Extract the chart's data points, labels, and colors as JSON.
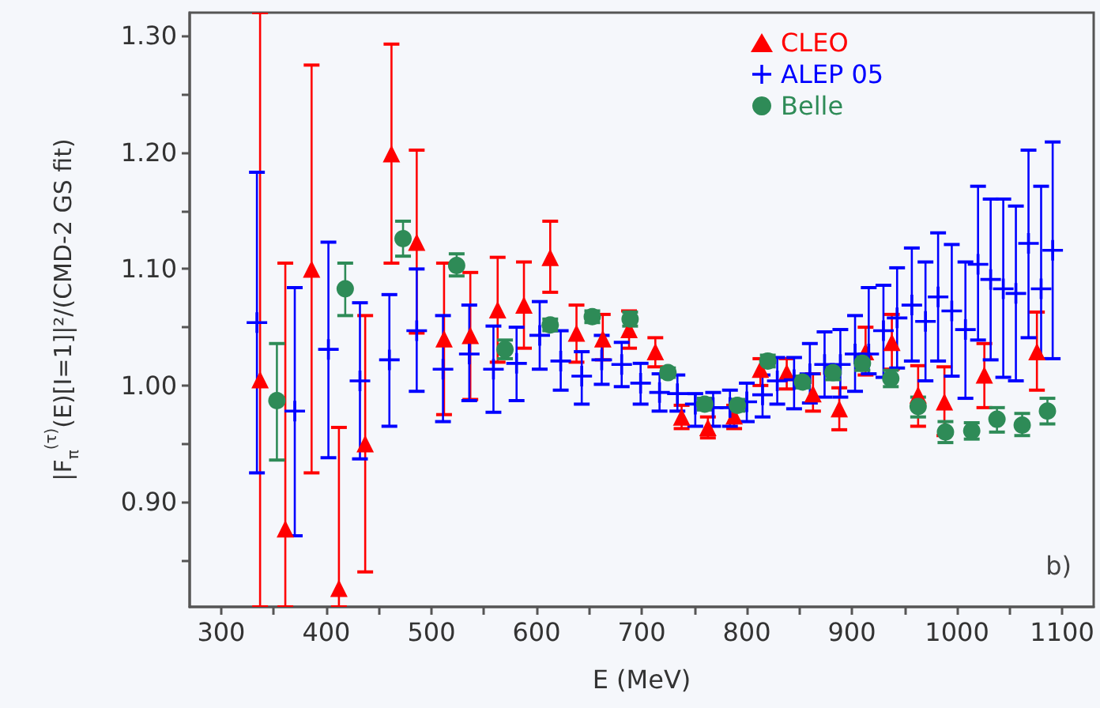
{
  "chart_data": {
    "type": "scatter",
    "xlabel": "E (MeV)",
    "ylabel": "|F$_{π}$$^{(τ)}$(E)[I=1]|²/(CMD-2 GS fit)",
    "annotations": [
      "b)"
    ],
    "xlim": [
      270,
      1130
    ],
    "ylim": [
      0.81,
      1.32
    ],
    "xticks": [
      300,
      {
        "value": 350,
        "label": null
      },
      400,
      {
        "value": 450,
        "label": null
      },
      500,
      {
        "value": 550,
        "label": null
      },
      600,
      {
        "value": 650,
        "label": null
      },
      700,
      {
        "value": 750,
        "label": null
      },
      800,
      {
        "value": 850,
        "label": null
      },
      900,
      {
        "value": 950,
        "label": null
      },
      1000,
      {
        "value": 1050,
        "label": null
      },
      1100
    ],
    "yticks": [
      {
        "value": 0.85,
        "label": null
      },
      {
        "value": 0.9,
        "label": "0.90"
      },
      {
        "value": 0.95,
        "label": null
      },
      {
        "value": 1.0,
        "label": "1.00"
      },
      {
        "value": 1.05,
        "label": null
      },
      {
        "value": 1.1,
        "label": "1.10"
      },
      {
        "value": 1.15,
        "label": null
      },
      {
        "value": 1.2,
        "label": "1.20"
      },
      {
        "value": 1.25,
        "label": null
      },
      {
        "value": 1.3,
        "label": "1.30"
      }
    ],
    "legend": "top",
    "grid": false,
    "series": [
      {
        "name": "CLEO",
        "color": "#ff0000",
        "marker": "triangle",
        "x": [
          337,
          361,
          386,
          412,
          437,
          462,
          486,
          512,
          537,
          563,
          588,
          613,
          638,
          663,
          688,
          713,
          738,
          763,
          788,
          813,
          838,
          863,
          888,
          913,
          938,
          963,
          988,
          1026,
          1076
        ],
        "values": [
          1.005,
          0.877,
          1.1,
          0.826,
          0.95,
          1.199,
          1.123,
          1.04,
          1.043,
          1.065,
          1.069,
          1.11,
          1.045,
          1.04,
          1.048,
          1.029,
          0.973,
          0.964,
          0.974,
          1.014,
          1.011,
          0.993,
          0.98,
          1.029,
          1.037,
          0.992,
          0.986,
          1.009,
          1.029
        ],
        "errors": [
          [
            0.81,
            1.32
          ],
          [
            0.81,
            1.105
          ],
          [
            0.925,
            1.275
          ],
          [
            0.81,
            0.964
          ],
          [
            0.84,
            1.06
          ],
          [
            1.105,
            1.293
          ],
          [
            1.045,
            1.202
          ],
          [
            0.975,
            1.105
          ],
          [
            0.988,
            1.097
          ],
          [
            1.02,
            1.11
          ],
          [
            1.032,
            1.106
          ],
          [
            1.08,
            1.141
          ],
          [
            1.02,
            1.069
          ],
          [
            1.022,
            1.061
          ],
          [
            1.032,
            1.064
          ],
          [
            1.016,
            1.041
          ],
          [
            0.963,
            0.983
          ],
          [
            0.955,
            0.973
          ],
          [
            0.963,
            0.983
          ],
          [
            1.0,
            1.023
          ],
          [
            0.997,
            1.023
          ],
          [
            0.978,
            1.01
          ],
          [
            0.962,
            0.998
          ],
          [
            1.009,
            1.05
          ],
          [
            1.014,
            1.061
          ],
          [
            0.965,
            1.017
          ],
          [
            0.957,
            1.016
          ],
          [
            0.981,
            1.036
          ],
          [
            0.996,
            1.063
          ]
        ]
      },
      {
        "name": "ALEP 05",
        "color": "#0000ff",
        "marker": "cross",
        "x": [
          334,
          370,
          402,
          432,
          460,
          486,
          511,
          536,
          559,
          581,
          603,
          623,
          643,
          662,
          681,
          699,
          717,
          734,
          751,
          768,
          784,
          800,
          815,
          829,
          845,
          860,
          874,
          889,
          903,
          916,
          930,
          943,
          957,
          970,
          982,
          995,
          1008,
          1020,
          1032,
          1044,
          1056,
          1068,
          1080,
          1091
        ],
        "values": [
          1.054,
          0.978,
          1.031,
          1.004,
          1.022,
          1.047,
          1.014,
          1.027,
          1.014,
          1.019,
          1.043,
          1.021,
          1.008,
          1.022,
          1.018,
          1.002,
          0.994,
          0.993,
          0.984,
          0.981,
          0.981,
          0.986,
          0.992,
          1.004,
          1.005,
          1.01,
          1.018,
          1.018,
          1.027,
          1.027,
          1.047,
          1.058,
          1.069,
          1.055,
          1.076,
          1.064,
          1.048,
          1.104,
          1.091,
          1.083,
          1.079,
          1.122,
          1.083,
          1.116
        ],
        "errors": [
          [
            0.925,
            1.183
          ],
          [
            0.871,
            1.084
          ],
          [
            0.938,
            1.123
          ],
          [
            0.937,
            1.071
          ],
          [
            0.965,
            1.078
          ],
          [
            0.995,
            1.1
          ],
          [
            0.969,
            1.06
          ],
          [
            0.987,
            1.069
          ],
          [
            0.977,
            1.051
          ],
          [
            0.987,
            1.05
          ],
          [
            1.014,
            1.072
          ],
          [
            0.996,
            1.047
          ],
          [
            0.984,
            1.029
          ],
          [
            1.001,
            1.043
          ],
          [
            0.999,
            1.037
          ],
          [
            0.984,
            1.019
          ],
          [
            0.978,
            1.01
          ],
          [
            0.978,
            1.009
          ],
          [
            0.965,
            0.993
          ],
          [
            0.965,
            0.994
          ],
          [
            0.965,
            0.996
          ],
          [
            0.969,
            1.002
          ],
          [
            0.973,
            1.009
          ],
          [
            0.984,
            1.024
          ],
          [
            0.98,
            1.024
          ],
          [
            0.985,
            1.036
          ],
          [
            0.99,
            1.046
          ],
          [
            0.99,
            1.048
          ],
          [
            0.995,
            1.06
          ],
          [
            1.01,
            1.084
          ],
          [
            1.007,
            1.086
          ],
          [
            1.015,
            1.101
          ],
          [
            1.021,
            1.118
          ],
          [
            1.004,
            1.106
          ],
          [
            1.021,
            1.131
          ],
          [
            1.008,
            1.121
          ],
          [
            0.989,
            1.106
          ],
          [
            1.039,
            1.171
          ],
          [
            1.022,
            1.16
          ],
          [
            1.007,
            1.16
          ],
          [
            1.004,
            1.154
          ],
          [
            1.041,
            1.202
          ],
          [
            1.023,
            1.171
          ],
          [
            1.023,
            1.209
          ]
        ]
      },
      {
        "name": "Belle",
        "color": "#2e8b57",
        "marker": "circle",
        "x": [
          353,
          418,
          473,
          524,
          570,
          613,
          653,
          689,
          725,
          760,
          791,
          820,
          853,
          882,
          910,
          937,
          963,
          989,
          1014,
          1038,
          1062,
          1086
        ],
        "values": [
          0.987,
          1.083,
          1.126,
          1.103,
          1.031,
          1.052,
          1.059,
          1.057,
          1.011,
          0.984,
          0.983,
          1.021,
          1.003,
          1.011,
          1.019,
          1.006,
          0.982,
          0.96,
          0.961,
          0.971,
          0.966,
          0.978
        ],
        "errors": [
          [
            0.936,
            1.036
          ],
          [
            1.06,
            1.105
          ],
          [
            1.111,
            1.141
          ],
          [
            1.094,
            1.113
          ],
          [
            1.023,
            1.039
          ],
          [
            1.047,
            1.057
          ],
          [
            1.054,
            1.064
          ],
          [
            1.051,
            1.063
          ],
          [
            1.007,
            1.015
          ],
          [
            0.979,
            0.989
          ],
          [
            0.978,
            0.988
          ],
          [
            1.016,
            1.026
          ],
          [
            0.998,
            1.008
          ],
          [
            1.005,
            1.017
          ],
          [
            1.013,
            1.025
          ],
          [
            0.999,
            1.013
          ],
          [
            0.973,
            0.99
          ],
          [
            0.951,
            0.969
          ],
          [
            0.954,
            0.968
          ],
          [
            0.96,
            0.981
          ],
          [
            0.957,
            0.976
          ],
          [
            0.967,
            0.989
          ]
        ]
      }
    ]
  }
}
